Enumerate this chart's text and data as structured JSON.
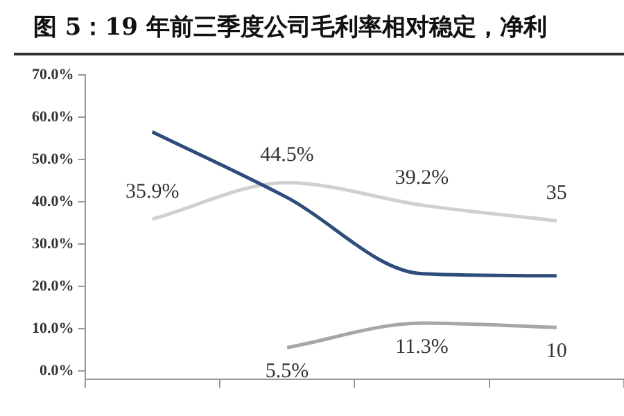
{
  "chart_data": {
    "type": "line",
    "title": "图 5：19 年前三季度公司毛利率相对稳定，净利",
    "categories": [
      null,
      null,
      null,
      null
    ],
    "series": [
      {
        "color": "#2e4d7b",
        "values": [
          56.5,
          41,
          23,
          22.5
        ]
      },
      {
        "color": "#d0d0d0",
        "values": [
          35.9,
          44.5,
          39.2,
          35.5
        ],
        "value_labels": [
          "35.9%",
          "44.5%",
          "39.2%",
          "35"
        ]
      },
      {
        "color": "#a6a6a6",
        "values": [
          null,
          5.5,
          11.3,
          10.3
        ],
        "value_labels": [
          null,
          "5.5%",
          "11.3%",
          "10"
        ]
      }
    ],
    "ylim": [
      -2,
      70
    ],
    "yticks": [
      {
        "value": 0,
        "label": "0.0%"
      },
      {
        "value": 10,
        "label": "10.0%"
      },
      {
        "value": 20,
        "label": "20.0%"
      },
      {
        "value": 30,
        "label": "30.0%"
      },
      {
        "value": 40,
        "label": "40.0%"
      },
      {
        "value": 50,
        "label": "50.0%"
      },
      {
        "value": 60,
        "label": "60.0%"
      },
      {
        "value": 70,
        "label": "70.0%"
      }
    ],
    "grid": false,
    "legend": false,
    "marker": "none",
    "line_style": "solid"
  }
}
